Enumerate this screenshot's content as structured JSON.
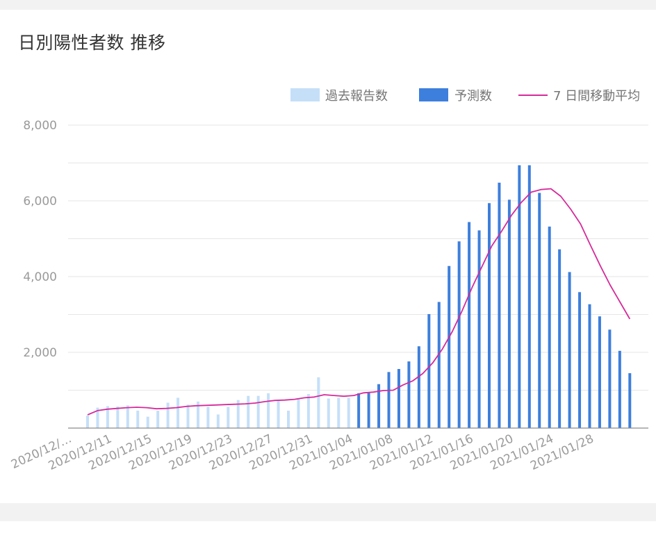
{
  "title": "日別陽性者数 推移",
  "colors": {
    "reported": "#c5dff8",
    "forecast": "#3d7fdc",
    "moving_avg": "#d62a9a",
    "grid": "#e6e6e6",
    "axis": "#8a8a8a"
  },
  "legend": [
    {
      "label": "過去報告数",
      "kind": "box",
      "color": "#c5dff8"
    },
    {
      "label": "予測数",
      "kind": "box",
      "color": "#3d7fdc"
    },
    {
      "label": "7 日間移動平均",
      "kind": "line",
      "color": "#d62a9a"
    }
  ],
  "chart_data": {
    "type": "bar",
    "ylim": [
      0,
      8000
    ],
    "yticks": [
      "2,000",
      "4,000",
      "6,000",
      "8,000"
    ],
    "ytick_values": [
      2000,
      4000,
      6000,
      8000
    ],
    "x_tick_labels": [
      "2020/12/…",
      "2020/12/11",
      "2020/12/15",
      "2020/12/19",
      "2020/12/23",
      "2020/12/27",
      "2020/12/31",
      "2021/01/04",
      "2021/01/08",
      "2021/01/12",
      "2021/01/16",
      "2021/01/20",
      "2021/01/24",
      "2021/01/28"
    ],
    "series": [
      {
        "name": "過去報告数",
        "values": [
          330,
          540,
          580,
          570,
          600,
          460,
          300,
          460,
          670,
          800,
          620,
          700,
          560,
          360,
          560,
          740,
          850,
          850,
          920,
          720,
          460,
          780,
          900,
          1340,
          780,
          800,
          800
        ]
      },
      {
        "name": "予測数",
        "values": [
          920,
          940,
          1160,
          1480,
          1560,
          1760,
          2160,
          3010,
          3330,
          4280,
          4930,
          5440,
          5220,
          5940,
          6480,
          6030,
          6940,
          6940,
          6210,
          5320,
          4720,
          4120,
          3590,
          3270,
          2950,
          2600,
          2040,
          1450
        ]
      },
      {
        "name": "7 日間移動平均",
        "values": [
          350,
          460,
          500,
          520,
          540,
          550,
          540,
          510,
          520,
          540,
          570,
          590,
          600,
          610,
          620,
          630,
          640,
          660,
          700,
          730,
          740,
          760,
          800,
          820,
          880,
          860,
          840,
          860,
          930,
          950,
          990,
          1000,
          1140,
          1250,
          1440,
          1720,
          2090,
          2550,
          3100,
          3710,
          4260,
          4810,
          5200,
          5620,
          5960,
          6230,
          6300,
          6320,
          6120,
          5780,
          5390,
          4830,
          4290,
          3780,
          3330,
          2880
        ]
      }
    ]
  }
}
